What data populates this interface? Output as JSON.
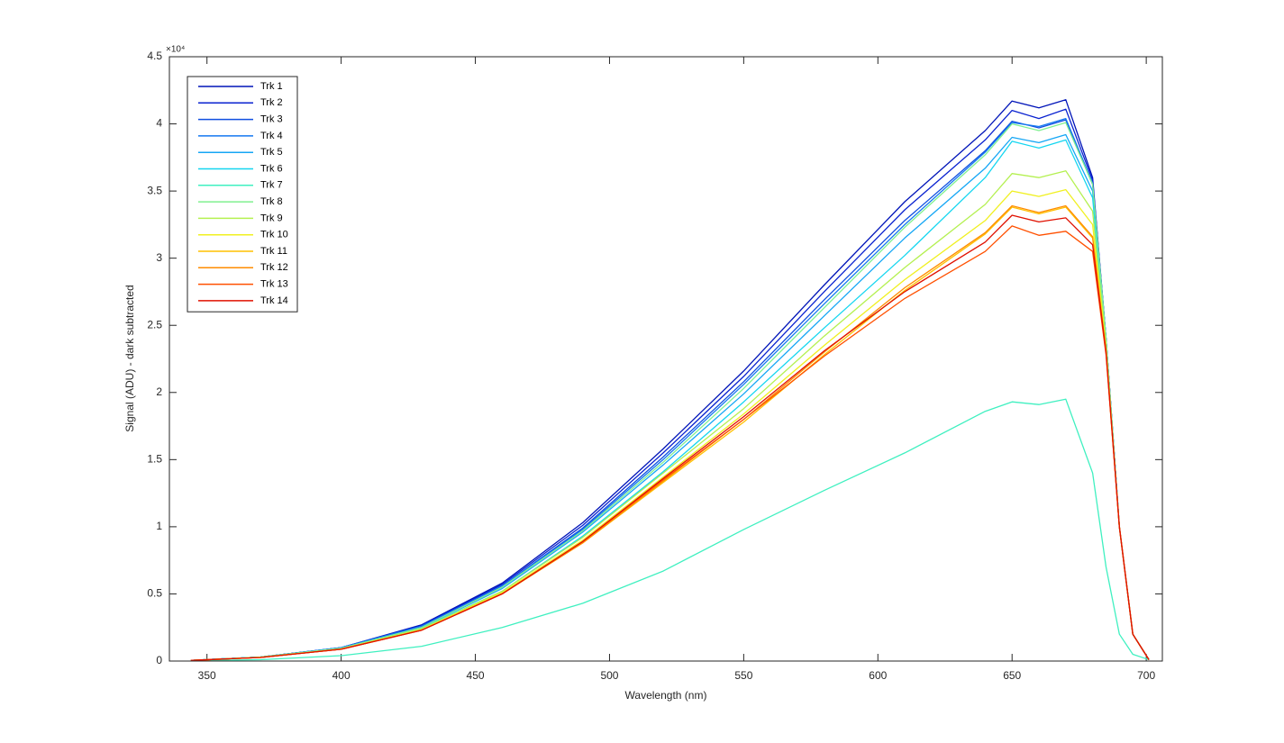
{
  "chart_data": {
    "type": "line",
    "xlabel": "Wavelength (nm)",
    "ylabel": "Signal (ADU) - dark subtracted",
    "y_exponent": "×10⁴",
    "x": [
      344,
      370,
      400,
      430,
      460,
      490,
      520,
      550,
      580,
      610,
      640,
      650,
      660,
      670,
      680,
      685,
      690,
      695,
      701
    ],
    "xlim": [
      336,
      706
    ],
    "xticks": [
      350,
      400,
      450,
      500,
      550,
      600,
      650,
      700
    ],
    "ylim": [
      0,
      4.5
    ],
    "yticks": [
      0,
      0.5,
      1,
      1.5,
      2,
      2.5,
      3,
      3.5,
      4,
      4.5
    ],
    "legend": "upper-left",
    "series": [
      {
        "name": "Trk 1",
        "color": "#0014b8",
        "values": [
          0.005,
          0.03,
          0.1,
          0.27,
          0.58,
          1.03,
          1.58,
          2.16,
          2.8,
          3.42,
          3.95,
          4.17,
          4.12,
          4.18,
          3.6,
          2.4,
          1.0,
          0.2,
          0.01
        ]
      },
      {
        "name": "Trk 2",
        "color": "#0a22d0",
        "values": [
          0.005,
          0.03,
          0.1,
          0.265,
          0.57,
          1.01,
          1.55,
          2.12,
          2.75,
          3.36,
          3.88,
          4.1,
          4.04,
          4.11,
          3.58,
          2.4,
          1.0,
          0.2,
          0.01
        ]
      },
      {
        "name": "Trk 3",
        "color": "#0f4ee0",
        "values": [
          0.005,
          0.03,
          0.1,
          0.26,
          0.56,
          0.99,
          1.52,
          2.08,
          2.69,
          3.28,
          3.8,
          4.02,
          3.97,
          4.03,
          3.55,
          2.4,
          1.0,
          0.2,
          0.01
        ]
      },
      {
        "name": "Trk 4",
        "color": "#1478f0",
        "values": [
          0.005,
          0.03,
          0.1,
          0.26,
          0.56,
          0.98,
          1.5,
          2.06,
          2.66,
          3.25,
          3.79,
          4.01,
          3.98,
          4.04,
          3.56,
          2.4,
          1.0,
          0.2,
          0.01
        ]
      },
      {
        "name": "Trk 5",
        "color": "#14a6f5",
        "values": [
          0.005,
          0.03,
          0.095,
          0.25,
          0.54,
          0.96,
          1.46,
          1.99,
          2.57,
          3.15,
          3.67,
          3.9,
          3.86,
          3.92,
          3.5,
          2.38,
          1.0,
          0.2,
          0.01
        ]
      },
      {
        "name": "Trk 6",
        "color": "#14d6f0",
        "values": [
          0.005,
          0.03,
          0.095,
          0.245,
          0.52,
          0.93,
          1.41,
          1.93,
          2.48,
          3.02,
          3.6,
          3.87,
          3.82,
          3.88,
          3.45,
          2.36,
          1.0,
          0.2,
          0.01
        ]
      },
      {
        "name": "Trk 7",
        "color": "#3ff0c0",
        "values": [
          0.003,
          0.01,
          0.04,
          0.11,
          0.25,
          0.43,
          0.67,
          0.98,
          1.27,
          1.55,
          1.86,
          1.93,
          1.91,
          1.95,
          1.4,
          0.7,
          0.2,
          0.05,
          0.01
        ]
      },
      {
        "name": "Trk 8",
        "color": "#80f090",
        "values": [
          0.005,
          0.03,
          0.095,
          0.25,
          0.55,
          0.97,
          1.48,
          2.03,
          2.63,
          3.23,
          3.77,
          4.0,
          3.95,
          4.01,
          3.55,
          2.4,
          1.0,
          0.2,
          0.01
        ]
      },
      {
        "name": "Trk 9",
        "color": "#b4f050",
        "values": [
          0.005,
          0.028,
          0.09,
          0.24,
          0.52,
          0.92,
          1.4,
          1.88,
          2.42,
          2.93,
          3.4,
          3.63,
          3.6,
          3.65,
          3.35,
          2.35,
          1.0,
          0.2,
          0.01
        ]
      },
      {
        "name": "Trk 10",
        "color": "#f0f020",
        "values": [
          0.005,
          0.028,
          0.09,
          0.235,
          0.51,
          0.9,
          1.37,
          1.84,
          2.35,
          2.84,
          3.28,
          3.5,
          3.46,
          3.51,
          3.25,
          2.33,
          1.0,
          0.2,
          0.01
        ]
      },
      {
        "name": "Trk 11",
        "color": "#ffc000",
        "values": [
          0.005,
          0.027,
          0.088,
          0.23,
          0.5,
          0.88,
          1.33,
          1.78,
          2.28,
          2.76,
          3.18,
          3.38,
          3.33,
          3.38,
          3.15,
          2.3,
          1.0,
          0.2,
          0.01
        ]
      },
      {
        "name": "Trk 12",
        "color": "#ff8c00",
        "values": [
          0.005,
          0.027,
          0.088,
          0.23,
          0.5,
          0.88,
          1.34,
          1.8,
          2.3,
          2.78,
          3.19,
          3.39,
          3.34,
          3.39,
          3.16,
          2.3,
          1.0,
          0.2,
          0.01
        ]
      },
      {
        "name": "Trk 13",
        "color": "#ff5000",
        "values": [
          0.005,
          0.027,
          0.088,
          0.23,
          0.5,
          0.89,
          1.35,
          1.8,
          2.27,
          2.7,
          3.05,
          3.24,
          3.17,
          3.2,
          3.05,
          2.28,
          1.0,
          0.2,
          0.01
        ]
      },
      {
        "name": "Trk 14",
        "color": "#e01000",
        "values": [
          0.005,
          0.027,
          0.088,
          0.23,
          0.5,
          0.89,
          1.36,
          1.82,
          2.31,
          2.75,
          3.12,
          3.32,
          3.27,
          3.3,
          3.1,
          2.3,
          1.0,
          0.2,
          0.01
        ]
      }
    ]
  }
}
